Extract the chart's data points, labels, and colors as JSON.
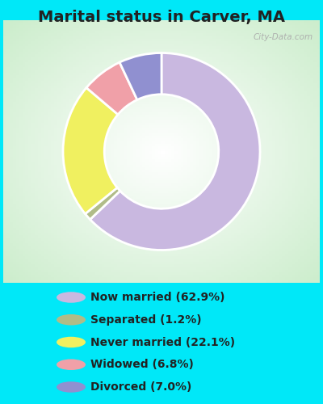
{
  "title": "Marital status in Carver, MA",
  "title_fontsize": 14,
  "title_fontweight": "bold",
  "title_color": "#222222",
  "background_cyan": "#00e8f8",
  "background_inner_color1": "#c8e8cc",
  "background_inner_color2": "#ffffff",
  "watermark": "City-Data.com",
  "slices": [
    62.9,
    1.2,
    22.1,
    6.8,
    7.0
  ],
  "colors": [
    "#c9b8e0",
    "#b0bc88",
    "#f0f060",
    "#f0a0a8",
    "#9090d0"
  ],
  "labels": [
    "Now married (62.9%)",
    "Separated (1.2%)",
    "Never married (22.1%)",
    "Widowed (6.8%)",
    "Divorced (7.0%)"
  ],
  "legend_fontsize": 10,
  "donut_width": 0.42,
  "start_angle": 90
}
